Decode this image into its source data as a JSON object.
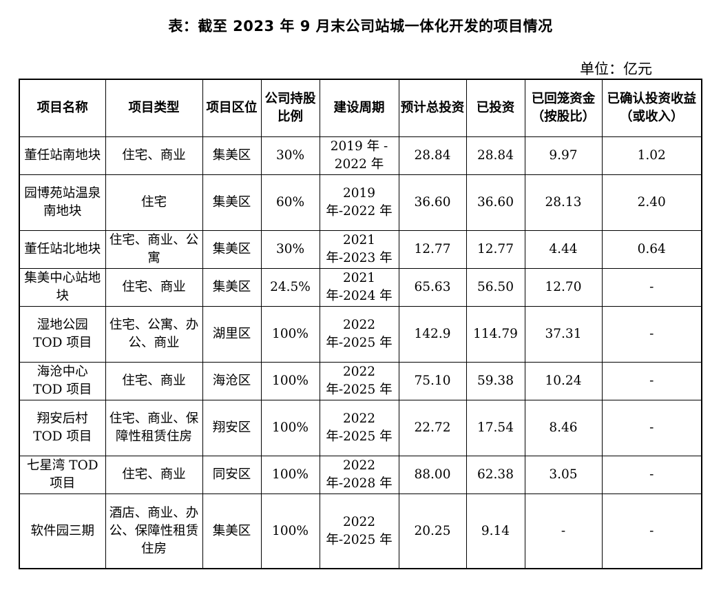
{
  "title": "表：截至 2023 年 9 月末公司站城一体化开发的项目情况",
  "unit": "单位：亿元",
  "table": {
    "headers": [
      "项目名称",
      "项目类型",
      "项目区位",
      "公司持股比例",
      "建设周期",
      "预计总投资",
      "已投资",
      "已回笼资金（按股比）",
      "已确认投资收益（或收入）"
    ],
    "rows": [
      [
        "董任站南地块",
        "住宅、商业",
        "集美区",
        "30%",
        "2019 年 - 2022 年",
        "28.84",
        "28.84",
        "9.97",
        "1.02"
      ],
      [
        "园博苑站温泉南地块",
        "住宅",
        "集美区",
        "60%",
        "2019 年-2022 年",
        "36.60",
        "36.60",
        "28.13",
        "2.40"
      ],
      [
        "董任站北地块",
        "住宅、商业、公寓",
        "集美区",
        "30%",
        "2021 年-2023 年",
        "12.77",
        "12.77",
        "4.44",
        "0.64"
      ],
      [
        "集美中心站地块",
        "住宅、商业",
        "集美区",
        "24.5%",
        "2021 年-2024 年",
        "65.63",
        "56.50",
        "12.70",
        "-"
      ],
      [
        "湿地公园 TOD 项目",
        "住宅、公寓、办公、商业",
        "湖里区",
        "100%",
        "2022 年-2025 年",
        "142.9",
        "114.79",
        "37.31",
        "-"
      ],
      [
        "海沧中心 TOD 项目",
        "住宅、商业",
        "海沧区",
        "100%",
        "2022 年-2025 年",
        "75.10",
        "59.38",
        "10.24",
        "-"
      ],
      [
        "翔安后村 TOD 项目",
        "住宅、商业、保障性租赁住房",
        "翔安区",
        "100%",
        "2022 年-2025 年",
        "22.72",
        "17.54",
        "8.46",
        "-"
      ],
      [
        "七星湾 TOD 项目",
        "住宅、商业",
        "同安区",
        "100%",
        "2022 年-2028 年",
        "88.00",
        "62.38",
        "3.05",
        "-"
      ],
      [
        "软件园三期",
        "酒店、商业、办公、保障性租赁住房",
        "集美区",
        "100%",
        "2022 年-2025 年",
        "20.25",
        "9.14",
        "-",
        "-"
      ]
    ]
  }
}
